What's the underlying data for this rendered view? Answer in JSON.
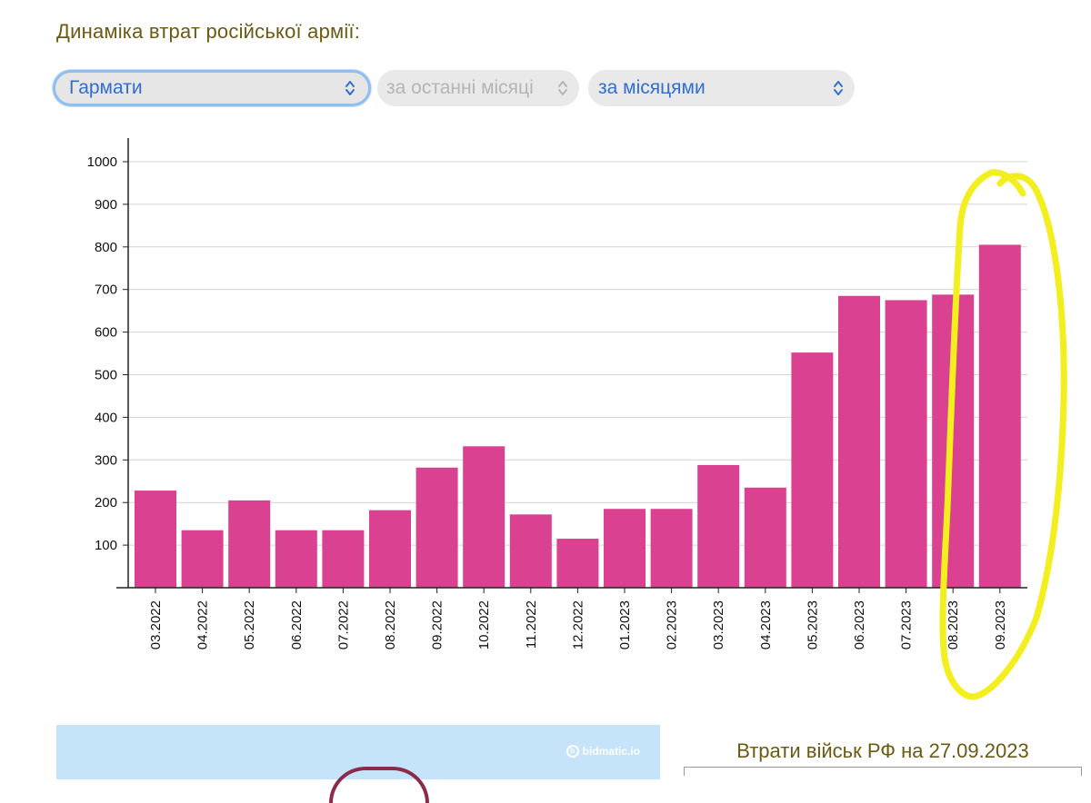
{
  "heading": "Динаміка втрат російської армії:",
  "filters": {
    "weapon": {
      "value": "Гармати",
      "icon": "chevron-updown-icon"
    },
    "period": {
      "value": "за останні місяці",
      "icon": "chevron-updown-icon"
    },
    "grouping": {
      "value": "за місяцями",
      "icon": "chevron-updown-icon"
    }
  },
  "colors": {
    "bar": "#db4191",
    "highlight": "#f3ee1e",
    "accent": "#2f6fd1",
    "heading": "#6b5a12"
  },
  "chart_data": {
    "type": "bar",
    "title": "",
    "xlabel": "",
    "ylabel": "",
    "ylim": [
      0,
      1000
    ],
    "yticks": [
      100,
      200,
      300,
      400,
      500,
      600,
      700,
      800,
      900,
      1000
    ],
    "grid": true,
    "categories": [
      "03.2022",
      "04.2022",
      "05.2022",
      "06.2022",
      "07.2022",
      "08.2022",
      "09.2022",
      "10.2022",
      "11.2022",
      "12.2022",
      "01.2023",
      "02.2023",
      "03.2023",
      "04.2023",
      "05.2023",
      "06.2023",
      "07.2023",
      "08.2023",
      "09.2023"
    ],
    "values": [
      228,
      135,
      205,
      135,
      135,
      182,
      282,
      332,
      172,
      115,
      185,
      185,
      288,
      235,
      552,
      685,
      675,
      688,
      805
    ],
    "annotation": "yellow hand-drawn ellipse around 08.2023–09.2023"
  },
  "promo": {
    "logo_text": "bidmatic.io",
    "logo_icon": "bidmatic-logo-icon"
  },
  "losses": {
    "title": "Втрати військ РФ на 27.09.2023"
  }
}
